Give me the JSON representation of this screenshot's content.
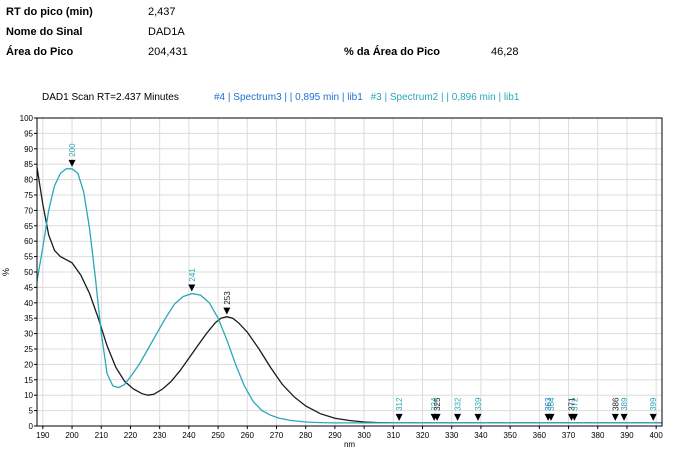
{
  "info": {
    "rt_label": "RT do pico (min)",
    "rt_value": "2,437",
    "signal_label": "Nome do Sinal",
    "signal_value": "DAD1A",
    "area_label": "Área do Pico",
    "area_value": "204,431",
    "area_pct_label": "% da Área do Pico",
    "area_pct_value": "46,28"
  },
  "colors": {
    "black_series": "#1a1a1a",
    "cyan_series": "#2aa8b8",
    "legend_blue": "#1f6fd1"
  },
  "chart_data": {
    "type": "line",
    "title": "DAD1 Scan RT=2.437 Minutes",
    "legend": [
      {
        "text": "#4 | Spectrum3 |  | 0,895 min | lib1",
        "color": "#1f6fd1"
      },
      {
        "text": "#3 | Spectrum2 |  | 0,896 min | lib1",
        "color": "#2aa8b8"
      }
    ],
    "xlabel": "nm",
    "ylabel": "%",
    "xlim": [
      188,
      402
    ],
    "ylim": [
      0,
      100
    ],
    "x_ticks": [
      190,
      200,
      210,
      220,
      230,
      240,
      250,
      260,
      270,
      280,
      290,
      300,
      310,
      320,
      330,
      340,
      350,
      360,
      370,
      380,
      390,
      400
    ],
    "y_ticks": [
      0,
      5,
      10,
      15,
      20,
      25,
      30,
      35,
      40,
      45,
      50,
      55,
      60,
      65,
      70,
      75,
      80,
      85,
      90,
      95,
      100
    ],
    "series": [
      {
        "color": "#1a1a1a",
        "x": [
          188,
          190,
          192,
          194,
          196,
          198,
          200,
          203,
          206,
          209,
          212,
          215,
          218,
          221,
          224,
          226,
          228,
          231,
          234,
          237,
          240,
          243,
          246,
          249,
          251,
          253,
          255,
          257,
          260,
          264,
          268,
          272,
          276,
          280,
          285,
          290,
          295,
          300,
          305,
          310,
          320,
          330,
          340,
          360,
          380,
          402
        ],
        "y": [
          84,
          72,
          62,
          57,
          55,
          54,
          53,
          49,
          43,
          35,
          26,
          19,
          14.5,
          12,
          10.5,
          10,
          10.3,
          12,
          14.5,
          18,
          22,
          26,
          30,
          33.5,
          35,
          35.5,
          35,
          33.5,
          30.5,
          25,
          19,
          13.5,
          9.5,
          6.5,
          4,
          2.5,
          1.8,
          1.3,
          1.1,
          1,
          1,
          1,
          1,
          1,
          1,
          1
        ]
      },
      {
        "color": "#2aa8b8",
        "x": [
          188,
          190,
          192,
          194,
          196,
          198,
          200,
          202,
          204,
          206,
          208,
          210,
          212,
          214,
          216,
          218,
          220,
          223,
          226,
          229,
          232,
          235,
          238,
          241,
          244,
          247,
          250,
          253,
          256,
          259,
          262,
          265,
          268,
          271,
          275,
          280,
          285,
          290,
          300,
          310,
          320,
          340,
          360,
          380,
          402
        ],
        "y": [
          47,
          58,
          70,
          78,
          82,
          83.5,
          83.5,
          82,
          76,
          64,
          48,
          30,
          17,
          13,
          12.5,
          13.5,
          16,
          20,
          25,
          30,
          35,
          39.5,
          42,
          43,
          42.5,
          40,
          35,
          28,
          20,
          13,
          8,
          5,
          3.5,
          2.5,
          1.8,
          1.3,
          1.1,
          1,
          1,
          1,
          1,
          1,
          1,
          1,
          1
        ]
      }
    ],
    "peak_labels": [
      {
        "x": 200,
        "y": 83.5,
        "label": "200",
        "color": "#2aa8b8"
      },
      {
        "x": 241,
        "y": 43,
        "label": "241",
        "color": "#2aa8b8"
      },
      {
        "x": 253,
        "y": 35.5,
        "label": "253",
        "color": "#1a1a1a"
      },
      {
        "x": 312,
        "y": 1,
        "label": "312",
        "color": "#2aa8b8"
      },
      {
        "x": 324,
        "y": 1,
        "label": "324",
        "color": "#2aa8b8"
      },
      {
        "x": 325,
        "y": 1,
        "label": "325",
        "color": "#1a1a1a"
      },
      {
        "x": 332,
        "y": 1,
        "label": "332",
        "color": "#2aa8b8"
      },
      {
        "x": 339,
        "y": 1,
        "label": "339",
        "color": "#2aa8b8"
      },
      {
        "x": 363,
        "y": 1,
        "label": "363",
        "color": "#1f6fd1"
      },
      {
        "x": 364,
        "y": 1,
        "label": "364",
        "color": "#2aa8b8"
      },
      {
        "x": 371,
        "y": 1,
        "label": "371",
        "color": "#1a1a1a"
      },
      {
        "x": 372,
        "y": 1,
        "label": "372",
        "color": "#2aa8b8"
      },
      {
        "x": 386,
        "y": 1,
        "label": "386",
        "color": "#1a1a1a"
      },
      {
        "x": 389,
        "y": 1,
        "label": "389",
        "color": "#2aa8b8"
      },
      {
        "x": 399,
        "y": 1,
        "label": "399",
        "color": "#2aa8b8"
      }
    ]
  }
}
